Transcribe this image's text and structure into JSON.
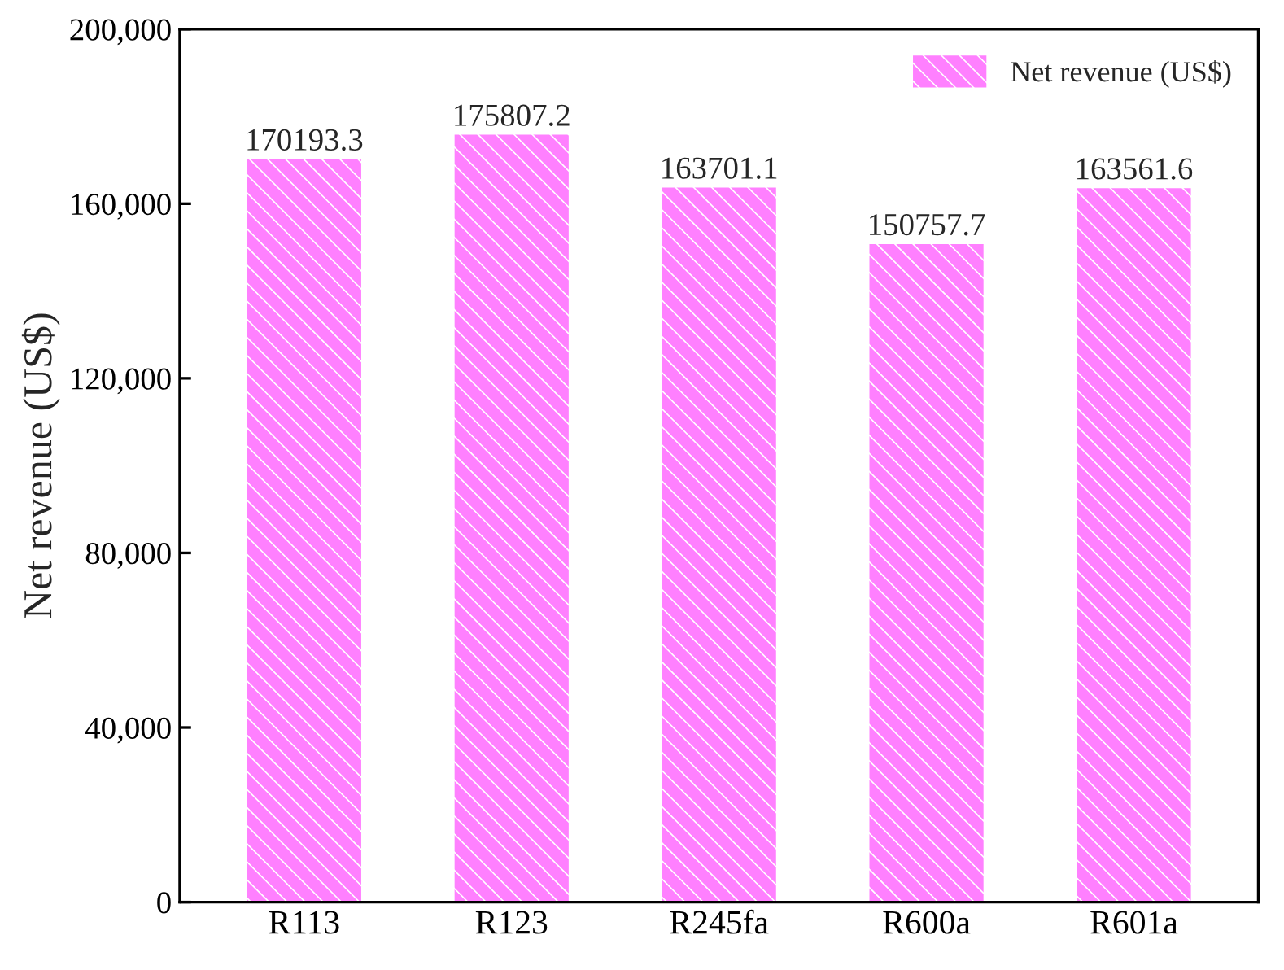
{
  "chart_data": {
    "type": "bar",
    "ylabel": "Net revenue (US$)",
    "categories": [
      "R113",
      "R123",
      "R245fa",
      "R600a",
      "R601a"
    ],
    "series": [
      {
        "name": "Net revenue (US$)",
        "color": "#ff80ff",
        "values": [
          170193.3,
          175807.2,
          163701.1,
          150757.7,
          163561.6
        ]
      }
    ],
    "ylim": [
      0,
      200000
    ],
    "yticks": [
      {
        "value": 0,
        "label": "0"
      },
      {
        "value": 40000,
        "label": "40,000"
      },
      {
        "value": 80000,
        "label": "80,000"
      },
      {
        "value": 120000,
        "label": "120,000"
      },
      {
        "value": 160000,
        "label": "160,000"
      },
      {
        "value": 200000,
        "label": "200,000"
      }
    ],
    "data_labels": true,
    "legend": "top right",
    "grid": false
  }
}
